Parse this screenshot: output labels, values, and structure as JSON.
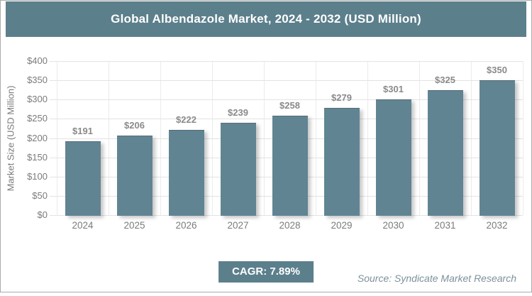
{
  "header": {
    "title": "Global Albendazole Market, 2024 - 2032 (USD Million)"
  },
  "chart_data": {
    "type": "bar",
    "title": "Global Albendazole Market, 2024 - 2032 (USD Million)",
    "categories": [
      "2024",
      "2025",
      "2026",
      "2027",
      "2028",
      "2029",
      "2030",
      "2031",
      "2032"
    ],
    "values": [
      191,
      206,
      222,
      239,
      258,
      279,
      301,
      325,
      350
    ],
    "value_labels": [
      "$191",
      "$206",
      "$222",
      "$239",
      "$258",
      "$279",
      "$301",
      "$325",
      "$350"
    ],
    "xlabel": "",
    "ylabel": "Market Size (USD Million)",
    "ylim": [
      0,
      400
    ],
    "ytick_step": 50,
    "ytick_labels": [
      "$0",
      "$50",
      "$100",
      "$150",
      "$200",
      "$250",
      "$300",
      "$350",
      "$400"
    ],
    "grid": true,
    "legend": false
  },
  "footer": {
    "cagr_label": "CAGR: 7.89%",
    "source": "Source: Syndicate Market Research"
  },
  "colors": {
    "header_bg": "#5C7F8C",
    "bar_fill": "#618493",
    "grid_line": "#E3E3E3",
    "vgrid_line": "#EBEBEB",
    "axis_text": "#7B7B7B",
    "value_label": "#8A8A8A",
    "source_text": "#7C929B",
    "frame_border": "#ABABAB"
  }
}
